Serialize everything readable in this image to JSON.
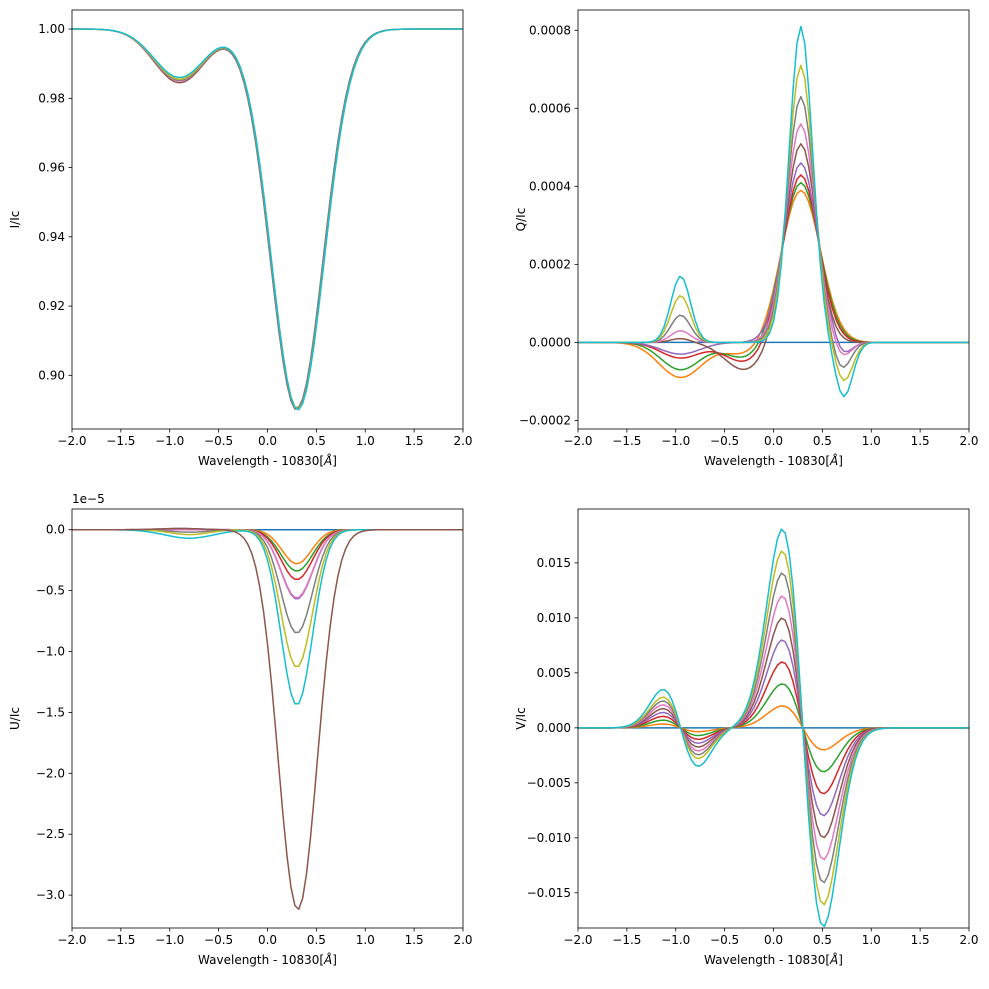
{
  "chart_data": [
    {
      "type": "line",
      "id": "I",
      "ylabel": "I/Ic",
      "xlabel": "Wavelength - 10830[$\\AA$]",
      "xlabel_main": "Wavelength - 10830[",
      "xlabel_unit": "Å",
      "xlabel_close": "]",
      "xlim": [
        -2.0,
        2.0
      ],
      "ylim": [
        0.8845,
        1.0055
      ],
      "offset_text": "",
      "xticks": [
        -2.0,
        -1.5,
        -1.0,
        -0.5,
        0.0,
        0.5,
        1.0,
        1.5,
        2.0
      ],
      "xtick_labels": [
        "−2.0",
        "−1.5",
        "−1.0",
        "−0.5",
        "0.0",
        "0.5",
        "1.0",
        "1.5",
        "2.0"
      ],
      "yticks": [
        0.9,
        0.92,
        0.94,
        0.96,
        0.98,
        1.0
      ],
      "ytick_labels": [
        "0.90",
        "0.92",
        "0.94",
        "0.96",
        "0.98",
        "1.00"
      ],
      "series": [
        {
          "color": "#8c564b",
          "comps": [
            {
              "a": -0.0155,
              "c": -0.9,
              "s": 0.26
            },
            {
              "a": -0.11,
              "c": 0.3,
              "s": 0.27
            }
          ]
        },
        {
          "color": "#e377c2",
          "comps": [
            {
              "a": -0.015,
              "c": -0.9,
              "s": 0.26
            },
            {
              "a": -0.1095,
              "c": 0.3,
              "s": 0.27
            }
          ]
        },
        {
          "color": "#7f7f7f",
          "comps": [
            {
              "a": -0.0148,
              "c": -0.9,
              "s": 0.26
            },
            {
              "a": -0.1095,
              "c": 0.3,
              "s": 0.27
            }
          ]
        },
        {
          "color": "#bcbd22",
          "comps": [
            {
              "a": -0.0145,
              "c": -0.9,
              "s": 0.26
            },
            {
              "a": -0.1098,
              "c": 0.31,
              "s": 0.27
            }
          ]
        },
        {
          "color": "#17becf",
          "comps": [
            {
              "a": -0.014,
              "c": -0.9,
              "s": 0.26
            },
            {
              "a": -0.11,
              "c": 0.31,
              "s": 0.27
            }
          ]
        }
      ]
    },
    {
      "type": "line",
      "id": "Q",
      "ylabel": "Q/Ic",
      "xlabel": "Wavelength - 10830[$\\AA$]",
      "xlabel_main": "Wavelength - 10830[",
      "xlabel_unit": "Å",
      "xlabel_close": "]",
      "xlim": [
        -2.0,
        2.0
      ],
      "ylim": [
        -0.000222,
        0.000852
      ],
      "offset_text": "",
      "xticks": [
        -2.0,
        -1.5,
        -1.0,
        -0.5,
        0.0,
        0.5,
        1.0,
        1.5,
        2.0
      ],
      "xtick_labels": [
        "−2.0",
        "−1.5",
        "−1.0",
        "−0.5",
        "0.0",
        "0.5",
        "1.0",
        "1.5",
        "2.0"
      ],
      "yticks": [
        -0.0002,
        0.0,
        0.0002,
        0.0004,
        0.0006,
        0.0008
      ],
      "ytick_labels": [
        "−0.0002",
        "0.0000",
        "0.0002",
        "0.0004",
        "0.0006",
        "0.0008"
      ],
      "series": [
        {
          "color": "#1f77b4",
          "comps": []
        },
        {
          "color": "#ff7f0e",
          "comps": [
            {
              "a": 0.00039,
              "c": 0.28,
              "s": 0.2
            },
            {
              "a": -9e-05,
              "c": -0.95,
              "s": 0.22
            },
            {
              "a": -3e-05,
              "c": -0.3,
              "s": 0.2
            }
          ]
        },
        {
          "color": "#2ca02c",
          "comps": [
            {
              "a": 0.00041,
              "c": 0.28,
              "s": 0.19
            },
            {
              "a": -7e-05,
              "c": -0.95,
              "s": 0.2
            },
            {
              "a": -4e-05,
              "c": -0.3,
              "s": 0.2
            }
          ]
        },
        {
          "color": "#d62728",
          "comps": [
            {
              "a": 0.00043,
              "c": 0.28,
              "s": 0.18
            },
            {
              "a": -4e-05,
              "c": -0.95,
              "s": 0.2
            },
            {
              "a": -5e-05,
              "c": -0.3,
              "s": 0.2
            }
          ]
        },
        {
          "color": "#9467bd",
          "comps": [
            {
              "a": 0.00046,
              "c": 0.28,
              "s": 0.17
            },
            {
              "a": -3e-05,
              "c": -0.95,
              "s": 0.2
            },
            {
              "a": -4e-05,
              "c": 0.7,
              "s": 0.09
            }
          ]
        },
        {
          "color": "#8c564b",
          "comps": [
            {
              "a": 0.00051,
              "c": 0.28,
              "s": 0.16
            },
            {
              "a": 1e-05,
              "c": -0.95,
              "s": 0.1
            },
            {
              "a": -7e-05,
              "c": -0.3,
              "s": 0.2
            }
          ]
        },
        {
          "color": "#e377c2",
          "comps": [
            {
              "a": 0.00056,
              "c": 0.28,
              "s": 0.15
            },
            {
              "a": 3e-05,
              "c": -0.95,
              "s": 0.1
            },
            {
              "a": -4e-05,
              "c": 0.7,
              "s": 0.09
            }
          ]
        },
        {
          "color": "#7f7f7f",
          "comps": [
            {
              "a": 0.00063,
              "c": 0.28,
              "s": 0.14
            },
            {
              "a": 7e-05,
              "c": -0.95,
              "s": 0.1
            },
            {
              "a": -7e-05,
              "c": 0.7,
              "s": 0.09
            }
          ]
        },
        {
          "color": "#bcbd22",
          "comps": [
            {
              "a": 0.00071,
              "c": 0.28,
              "s": 0.13
            },
            {
              "a": 0.00012,
              "c": -0.95,
              "s": 0.1
            },
            {
              "a": -0.0001,
              "c": 0.72,
              "s": 0.09
            }
          ]
        },
        {
          "color": "#17becf",
          "comps": [
            {
              "a": 0.00081,
              "c": 0.28,
              "s": 0.12
            },
            {
              "a": 0.00017,
              "c": -0.95,
              "s": 0.1
            },
            {
              "a": -0.00014,
              "c": 0.72,
              "s": 0.09
            }
          ]
        }
      ]
    },
    {
      "type": "line",
      "id": "U",
      "ylabel": "U/Ic",
      "xlabel": "Wavelength - 10830[$\\AA$]",
      "xlabel_main": "Wavelength - 10830[",
      "xlabel_unit": "Å",
      "xlabel_close": "]",
      "xlim": [
        -2.0,
        2.0
      ],
      "ylim": [
        -3.27,
        0.17
      ],
      "offset_text": "1e−5",
      "xticks": [
        -2.0,
        -1.5,
        -1.0,
        -0.5,
        0.0,
        0.5,
        1.0,
        1.5,
        2.0
      ],
      "xtick_labels": [
        "−2.0",
        "−1.5",
        "−1.0",
        "−0.5",
        "0.0",
        "0.5",
        "1.0",
        "1.5",
        "2.0"
      ],
      "yticks": [
        -3.0,
        -2.5,
        -2.0,
        -1.5,
        -1.0,
        -0.5,
        0.0
      ],
      "ytick_labels": [
        "−3.0",
        "−2.5",
        "−2.0",
        "−1.5",
        "−1.0",
        "−0.5",
        "0.0"
      ],
      "series": [
        {
          "color": "#1f77b4",
          "comps": []
        },
        {
          "color": "#ff7f0e",
          "comps": [
            {
              "a": -0.28,
              "c": 0.3,
              "s": 0.15
            }
          ]
        },
        {
          "color": "#2ca02c",
          "comps": [
            {
              "a": -0.34,
              "c": 0.3,
              "s": 0.16
            }
          ]
        },
        {
          "color": "#d62728",
          "comps": [
            {
              "a": -0.41,
              "c": 0.3,
              "s": 0.16
            },
            {
              "a": 0.005,
              "c": -0.9,
              "s": 0.2
            }
          ]
        },
        {
          "color": "#9467bd",
          "comps": [
            {
              "a": -0.57,
              "c": 0.3,
              "s": 0.16
            },
            {
              "a": 0.01,
              "c": -0.9,
              "s": 0.2
            }
          ]
        },
        {
          "color": "#e377c2",
          "comps": [
            {
              "a": -0.56,
              "c": 0.3,
              "s": 0.16
            }
          ]
        },
        {
          "color": "#7f7f7f",
          "comps": [
            {
              "a": -0.85,
              "c": 0.3,
              "s": 0.16
            },
            {
              "a": -0.02,
              "c": -0.8,
              "s": 0.2
            }
          ]
        },
        {
          "color": "#bcbd22",
          "comps": [
            {
              "a": -1.13,
              "c": 0.3,
              "s": 0.16
            },
            {
              "a": -0.04,
              "c": -0.8,
              "s": 0.2
            }
          ]
        },
        {
          "color": "#17becf",
          "comps": [
            {
              "a": -1.44,
              "c": 0.3,
              "s": 0.16
            },
            {
              "a": -0.07,
              "c": -0.8,
              "s": 0.25
            }
          ]
        },
        {
          "color": "#8c564b",
          "comps": [
            {
              "a": -3.12,
              "c": 0.31,
              "s": 0.2
            },
            {
              "a": 0.01,
              "c": -0.9,
              "s": 0.2
            }
          ]
        }
      ]
    },
    {
      "type": "line",
      "id": "V",
      "ylabel": "V/Ic",
      "xlabel": "Wavelength - 10830[$\\AA$]",
      "xlabel_main": "Wavelength - 10830[",
      "xlabel_unit": "Å",
      "xlabel_close": "]",
      "xlim": [
        -2.0,
        2.0
      ],
      "ylim": [
        -0.0182,
        0.0199
      ],
      "offset_text": "",
      "xticks": [
        -2.0,
        -1.5,
        -1.0,
        -0.5,
        0.0,
        0.5,
        1.0,
        1.5,
        2.0
      ],
      "xtick_labels": [
        "−2.0",
        "−1.5",
        "−1.0",
        "−0.5",
        "0.0",
        "0.5",
        "1.0",
        "1.5",
        "2.0"
      ],
      "yticks": [
        -0.015,
        -0.01,
        -0.005,
        0.0,
        0.005,
        0.01,
        0.015
      ],
      "ytick_labels": [
        "−0.015",
        "−0.010",
        "−0.005",
        "0.000",
        "0.005",
        "0.010",
        "0.015"
      ],
      "series": [
        {
          "color": "#1f77b4",
          "comps": []
        },
        {
          "color": "#ff7f0e",
          "vamp": 0.002,
          "bamp": 0.00035
        },
        {
          "color": "#2ca02c",
          "vamp": 0.004,
          "bamp": 0.0007
        },
        {
          "color": "#d62728",
          "vamp": 0.006,
          "bamp": 0.00105
        },
        {
          "color": "#9467bd",
          "vamp": 0.008,
          "bamp": 0.0014
        },
        {
          "color": "#8c564b",
          "vamp": 0.01,
          "bamp": 0.00175
        },
        {
          "color": "#e377c2",
          "vamp": 0.012,
          "bamp": 0.0021
        },
        {
          "color": "#7f7f7f",
          "vamp": 0.0141,
          "bamp": 0.00245
        },
        {
          "color": "#bcbd22",
          "vamp": 0.0161,
          "bamp": 0.0028
        },
        {
          "color": "#17becf",
          "vamp": 0.0181,
          "bamp": 0.0035
        }
      ]
    }
  ]
}
